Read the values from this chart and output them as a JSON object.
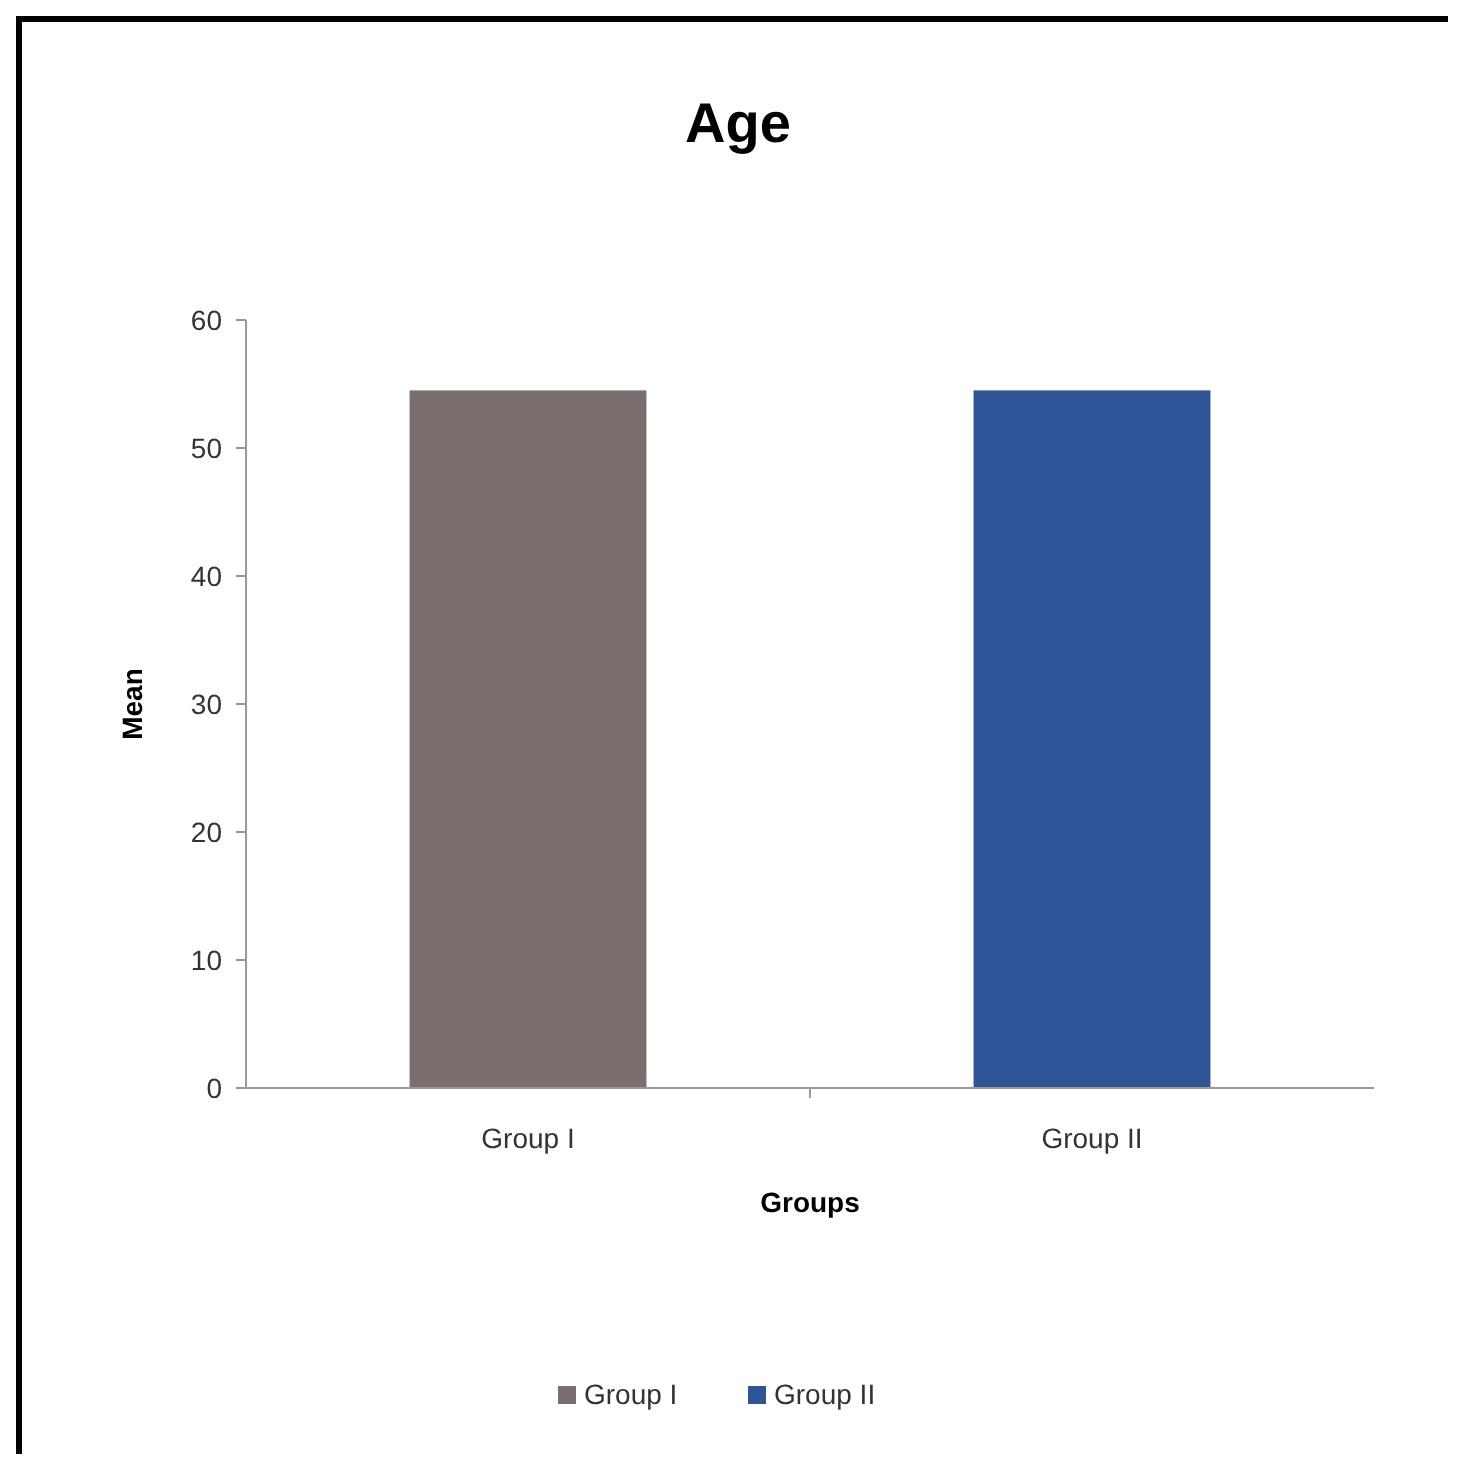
{
  "chart_data": {
    "type": "bar",
    "title": "Age",
    "xlabel": "Groups",
    "ylabel": "Mean",
    "categories": [
      "Group I",
      "Group II"
    ],
    "series": [
      {
        "name": "Group I",
        "color": "#7a6e6e",
        "values": [
          54.5,
          null
        ]
      },
      {
        "name": "Group II",
        "color": "#2e5597",
        "values": [
          null,
          54.5
        ]
      }
    ],
    "ylim": [
      0,
      60
    ],
    "yticks": [
      0,
      10,
      20,
      30,
      40,
      50,
      60
    ],
    "grid": false,
    "legend": "bottom"
  }
}
